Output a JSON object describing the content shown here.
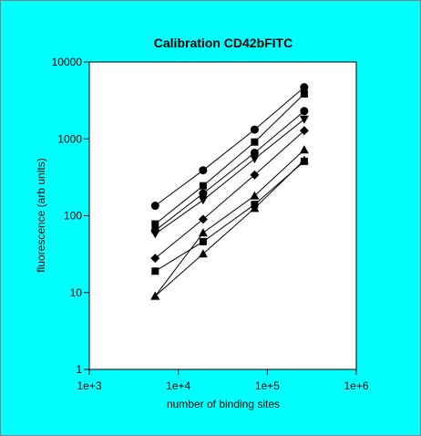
{
  "chart_data": {
    "type": "scatter",
    "title": "Calibration CD42bFITC",
    "xlabel": "number of binding sites",
    "ylabel": "fluorescence (arb units)",
    "xscale": "log",
    "yscale": "log",
    "xlim": [
      1000,
      1000000
    ],
    "ylim": [
      1,
      10000
    ],
    "x_ticks": [
      1000,
      10000,
      100000,
      1000000
    ],
    "x_tick_labels": [
      "1e+3",
      "1e+4",
      "1e+5",
      "1e+6"
    ],
    "y_ticks": [
      1,
      10,
      100,
      1000,
      10000
    ],
    "y_tick_labels": [
      "1",
      "10",
      "100",
      "1000",
      "10000"
    ],
    "grid": false,
    "legend": "none",
    "background": "#00ffff",
    "plot_background": "#ffffff",
    "x": [
      5500,
      19000,
      72000,
      260000
    ],
    "series": [
      {
        "marker": "circle",
        "values": [
          135,
          390,
          1320,
          4700
        ]
      },
      {
        "marker": "square",
        "values": [
          78,
          245,
          910,
          3850
        ]
      },
      {
        "marker": "circle",
        "values": [
          64,
          195,
          660,
          2300
        ]
      },
      {
        "marker": "triangle-down",
        "values": [
          58,
          160,
          550,
          1800
        ]
      },
      {
        "marker": "diamond",
        "values": [
          28,
          90,
          340,
          1280
        ]
      },
      {
        "marker": "square",
        "values": [
          19,
          46,
          140,
          510
        ]
      },
      {
        "marker": "triangle",
        "values": [
          9,
          60,
          182,
          720
        ]
      },
      {
        "marker": "triangle",
        "values": [
          9,
          32,
          125,
          530
        ]
      }
    ]
  }
}
